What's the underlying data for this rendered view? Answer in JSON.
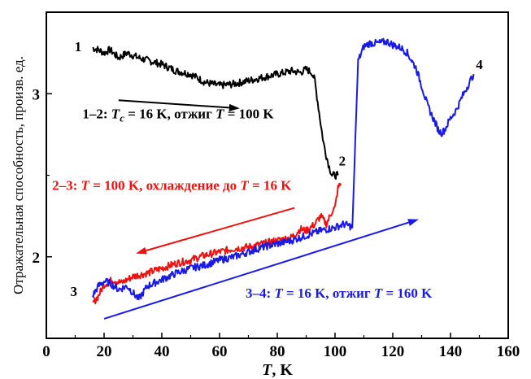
{
  "chart_data": {
    "type": "line",
    "xlabel_italic": "T",
    "xlabel_rest": ", K",
    "ylabel": "Отражательная способность, произв. ед.",
    "xlim": [
      0,
      160
    ],
    "ylim": [
      1.5,
      3.5
    ],
    "x_ticks": [
      0,
      20,
      40,
      60,
      80,
      100,
      120,
      140,
      160
    ],
    "y_ticks": [
      2,
      3
    ],
    "x_tick_labels": [
      "0",
      "20",
      "40",
      "60",
      "80",
      "100",
      "120",
      "140",
      "160"
    ],
    "y_tick_labels": [
      "2",
      "3"
    ],
    "series": [
      {
        "color": "#000000",
        "x": [
          16,
          18,
          20,
          22,
          25,
          28,
          32,
          36,
          40,
          45,
          50,
          55,
          60,
          65,
          70,
          75,
          80,
          85,
          88,
          90,
          92,
          93,
          94,
          95,
          96,
          97,
          98,
          99,
          100,
          101
        ],
        "y": [
          3.28,
          3.27,
          3.25,
          3.27,
          3.22,
          3.25,
          3.22,
          3.2,
          3.18,
          3.14,
          3.12,
          3.07,
          3.05,
          3.06,
          3.08,
          3.1,
          3.12,
          3.14,
          3.13,
          3.15,
          3.13,
          3.08,
          2.95,
          2.82,
          2.7,
          2.62,
          2.55,
          2.5,
          2.5,
          2.5
        ]
      },
      {
        "color": "#ee1111",
        "x": [
          16,
          18,
          20,
          23,
          26,
          30,
          35,
          40,
          45,
          50,
          55,
          60,
          65,
          70,
          75,
          80,
          85,
          88,
          90,
          93,
          95,
          97,
          99,
          100,
          101,
          102
        ],
        "y": [
          1.71,
          1.76,
          1.83,
          1.86,
          1.84,
          1.88,
          1.9,
          1.93,
          1.96,
          1.98,
          2.01,
          2.03,
          2.05,
          2.06,
          2.08,
          2.1,
          2.12,
          2.17,
          2.16,
          2.2,
          2.25,
          2.2,
          2.28,
          2.3,
          2.42,
          2.45
        ]
      },
      {
        "color": "#1a1ae6",
        "x": [
          16,
          18,
          20,
          22,
          25,
          28,
          30,
          32,
          35,
          40,
          45,
          50,
          55,
          60,
          65,
          70,
          75,
          80,
          85,
          90,
          95,
          100,
          103,
          105,
          106,
          107,
          108,
          110,
          112,
          115,
          118,
          120,
          123,
          125,
          128,
          130,
          132,
          134,
          136,
          137,
          138,
          140,
          142,
          144,
          146,
          148
        ],
        "y": [
          1.76,
          1.82,
          1.85,
          1.84,
          1.8,
          1.82,
          1.78,
          1.74,
          1.82,
          1.86,
          1.9,
          1.93,
          1.95,
          1.98,
          2.0,
          2.03,
          2.06,
          2.08,
          2.1,
          2.13,
          2.16,
          2.18,
          2.2,
          2.19,
          2.18,
          2.7,
          3.2,
          3.29,
          3.31,
          3.31,
          3.32,
          3.3,
          3.28,
          3.25,
          3.16,
          3.05,
          2.93,
          2.85,
          2.77,
          2.76,
          2.78,
          2.85,
          2.9,
          2.98,
          3.05,
          3.12
        ]
      }
    ],
    "annotations": [
      {
        "id": "a12",
        "color": "#000000",
        "prefix": "1–2: ",
        "v1": "T",
        "sub": "c",
        "mid": " = 16 K, отжиг ",
        "v2": "T",
        "suffix": " = 100 K",
        "x": 12.5,
        "y": 2.85
      },
      {
        "id": "a23",
        "color": "#ee1111",
        "prefix": "2–3: ",
        "v1": "T",
        "sub": "",
        "mid": " = 100 K, охлаждение до ",
        "v2": "T",
        "suffix": " = 16 K",
        "x": 2,
        "y": 2.41
      },
      {
        "id": "a34",
        "color": "#1a1ae6",
        "prefix": "3–4: ",
        "v1": "T",
        "sub": "",
        "mid": " = 16 K, отжиг ",
        "v2": "T",
        "suffix": " = 160 K",
        "x": 69,
        "y": 1.75
      }
    ],
    "arrows": [
      {
        "color": "#000000",
        "x1": 25,
        "y1": 2.96,
        "x2": 67,
        "y2": 2.91
      },
      {
        "color": "#ee1111",
        "x1": 86,
        "y1": 2.3,
        "x2": 31,
        "y2": 2.02
      },
      {
        "color": "#1a1ae6",
        "x1": 20,
        "y1": 1.62,
        "x2": 129,
        "y2": 2.23
      }
    ],
    "point_labels": [
      {
        "text": "1",
        "x": 11,
        "y": 3.26
      },
      {
        "text": "2",
        "x": 102.5,
        "y": 2.56
      },
      {
        "text": "3",
        "x": 9.5,
        "y": 1.76
      },
      {
        "text": "4",
        "x": 150,
        "y": 3.15
      }
    ]
  }
}
